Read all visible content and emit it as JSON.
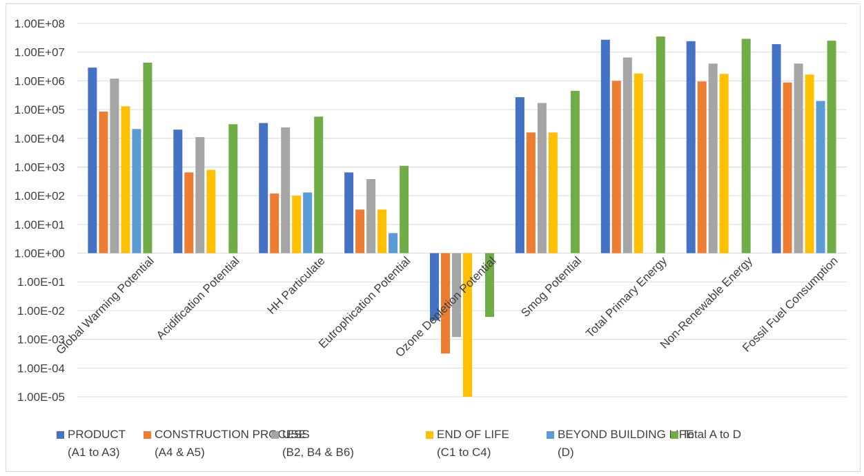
{
  "chart_data": {
    "type": "bar",
    "yscale": "log",
    "ylim": [
      "1.00E-05",
      "1.00E+08"
    ],
    "grid": true,
    "legend_position": "bottom",
    "ytick_labels": [
      "1.00E+08",
      "1.00E+07",
      "1.00E+06",
      "1.00E+05",
      "1.00E+04",
      "1.00E+03",
      "1.00E+02",
      "1.00E+01",
      "1.00E+00",
      "1.00E-01",
      "1.00E-02",
      "1.00E-03",
      "1.00E-04",
      "1.00E-05"
    ],
    "categories": [
      "Global Warming Potential",
      "Acidification Potential",
      "HH Particulate",
      "Eutrophication Potential",
      "Ozone Depletion Potential",
      "Smog Potential",
      "Total Primary Energy",
      "Non-Renewable Energy",
      "Fossil Fuel Consumption"
    ],
    "series": [
      {
        "name": "PRODUCT (A1 to A3)",
        "line1": "PRODUCT",
        "line2": "(A1 to A3)",
        "color": "#4472c4",
        "values": [
          2900000,
          20000,
          34000,
          650,
          0.0045,
          270000,
          27000000,
          24000000,
          19000000
        ]
      },
      {
        "name": "CONSTRUCTION PROCESS (A4 & A5)",
        "line1": "CONSTRUCTION PROCESS",
        "line2": "(A4 & A5)",
        "color": "#ed7d31",
        "values": [
          85000,
          650,
          120,
          33,
          0.00032,
          16000,
          1000000,
          950000,
          880000
        ]
      },
      {
        "name": "USE (B2, B4 & B6)",
        "line1": "USE",
        "line2": "(B2, B4 & B6)",
        "color": "#a5a5a5",
        "values": [
          1200000,
          11000,
          24000,
          380,
          0.0012,
          170000,
          6500000,
          4000000,
          4000000
        ]
      },
      {
        "name": "END OF LIFE (C1 to C4)",
        "line1": "END OF LIFE",
        "line2": "(C1 to C4)",
        "color": "#ffc000",
        "values": [
          130000,
          800,
          100,
          33,
          1e-05,
          16000,
          1800000,
          1750000,
          1650000
        ]
      },
      {
        "name": "BEYOND BUILDING LIFE (D)",
        "line1": "BEYOND BUILDING LIFE",
        "line2": "(D)",
        "color": "#5b9bd5",
        "values": [
          21000,
          null,
          130,
          5.0,
          null,
          null,
          null,
          null,
          200000
        ]
      },
      {
        "name": "Total A to D",
        "line1": "Total A to D",
        "line2": "",
        "color": "#70ad47",
        "values": [
          4300000,
          31000,
          57000,
          1100,
          0.006,
          450000,
          35000000,
          29000000,
          25000000
        ]
      }
    ]
  }
}
